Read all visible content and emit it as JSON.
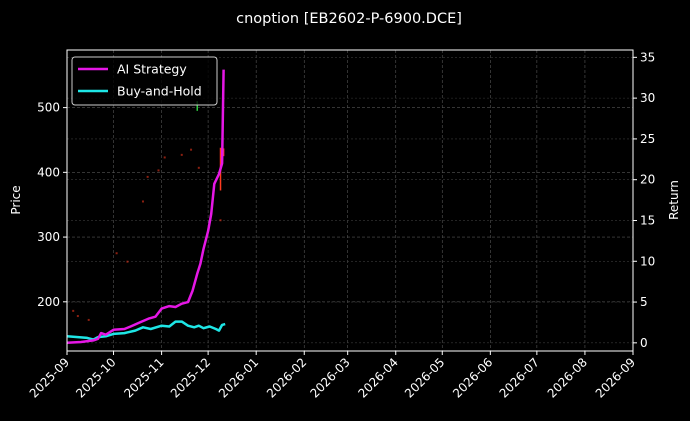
{
  "chart_data": {
    "type": "line",
    "title": "cnoption [EB2602-P-6900.DCE]",
    "xlabel": "",
    "ylabel": "Price",
    "y2label": "Return",
    "x_ticks": [
      "2025-09",
      "2025-10",
      "2025-11",
      "2025-12",
      "2026-01",
      "2026-02",
      "2026-03",
      "2026-04",
      "2026-05",
      "2026-06",
      "2026-07",
      "2026-08",
      "2026-09"
    ],
    "y_ticks": [
      200,
      300,
      400,
      500
    ],
    "y2_ticks": [
      0,
      5,
      10,
      15,
      20,
      25,
      30,
      35
    ],
    "ylim": [
      124,
      589
    ],
    "y2lim": [
      -1,
      35.9
    ],
    "xlim": [
      "2025-09-01",
      "2026-09-01"
    ],
    "grid": true,
    "legend_position": "upper left",
    "background": "#000000",
    "series": [
      {
        "name": "AI Strategy",
        "axis": "right",
        "color": "#e617e6",
        "x": [
          "2025-09-01",
          "2025-09-10",
          "2025-09-18",
          "2025-09-21",
          "2025-09-23",
          "2025-09-26",
          "2025-10-01",
          "2025-10-08",
          "2025-10-12",
          "2025-10-18",
          "2025-10-24",
          "2025-10-28",
          "2025-11-01",
          "2025-11-06",
          "2025-11-10",
          "2025-11-14",
          "2025-11-18",
          "2025-11-21",
          "2025-11-24",
          "2025-11-26",
          "2025-11-28",
          "2025-12-01",
          "2025-12-03",
          "2025-12-05",
          "2025-12-08",
          "2025-12-10",
          "2025-12-11"
        ],
        "values": [
          0.0,
          0.1,
          0.3,
          0.5,
          1.2,
          1.0,
          1.6,
          1.7,
          2.0,
          2.5,
          3.0,
          3.2,
          4.2,
          4.5,
          4.4,
          4.8,
          5.0,
          6.4,
          8.5,
          9.7,
          11.5,
          13.7,
          15.8,
          19.5,
          20.7,
          22.0,
          33.5
        ]
      },
      {
        "name": "Buy-and-Hold",
        "axis": "right",
        "color": "#1ee6e6",
        "x": [
          "2025-09-01",
          "2025-09-08",
          "2025-09-14",
          "2025-09-18",
          "2025-09-21",
          "2025-09-26",
          "2025-10-01",
          "2025-10-08",
          "2025-10-15",
          "2025-10-20",
          "2025-10-25",
          "2025-11-01",
          "2025-11-06",
          "2025-11-10",
          "2025-11-14",
          "2025-11-18",
          "2025-11-22",
          "2025-11-25",
          "2025-11-28",
          "2025-12-02",
          "2025-12-06",
          "2025-12-08",
          "2025-12-10",
          "2025-12-12"
        ],
        "values": [
          0.8,
          0.7,
          0.6,
          0.4,
          0.7,
          0.8,
          1.1,
          1.2,
          1.5,
          1.9,
          1.7,
          2.1,
          2.0,
          2.6,
          2.6,
          2.1,
          1.9,
          2.1,
          1.8,
          2.0,
          1.7,
          1.5,
          2.2,
          2.3
        ]
      }
    ],
    "scatter_marks": {
      "description": "faint red/green price markers on left axis",
      "color_up": "#2ecc40",
      "color_down": "#ff3b1f",
      "points": [
        {
          "date": "2025-09-05",
          "price": 186
        },
        {
          "date": "2025-09-08",
          "price": 178
        },
        {
          "date": "2025-09-15",
          "price": 172
        },
        {
          "date": "2025-10-03",
          "price": 275
        },
        {
          "date": "2025-10-10",
          "price": 262
        },
        {
          "date": "2025-10-20",
          "price": 355
        },
        {
          "date": "2025-10-23",
          "price": 393
        },
        {
          "date": "2025-10-30",
          "price": 403
        },
        {
          "date": "2025-11-03",
          "price": 423
        },
        {
          "date": "2025-11-14",
          "price": 427
        },
        {
          "date": "2025-11-20",
          "price": 435
        },
        {
          "date": "2025-11-25",
          "price": 407
        },
        {
          "date": "2025-12-09",
          "price": 326
        },
        {
          "date": "2025-12-10",
          "price": 436
        }
      ],
      "bars": [
        {
          "date": "2025-11-24",
          "low": 495,
          "high": 510,
          "color": "#2ecc40"
        },
        {
          "date": "2025-12-09",
          "low": 372,
          "high": 438,
          "color": "#ff3b1f"
        },
        {
          "date": "2025-12-11",
          "low": 425,
          "high": 437,
          "color": "#ff3b1f"
        }
      ]
    }
  },
  "legend": {
    "items": [
      {
        "label": "AI Strategy",
        "color": "#e617e6"
      },
      {
        "label": "Buy-and-Hold",
        "color": "#1ee6e6"
      }
    ]
  }
}
